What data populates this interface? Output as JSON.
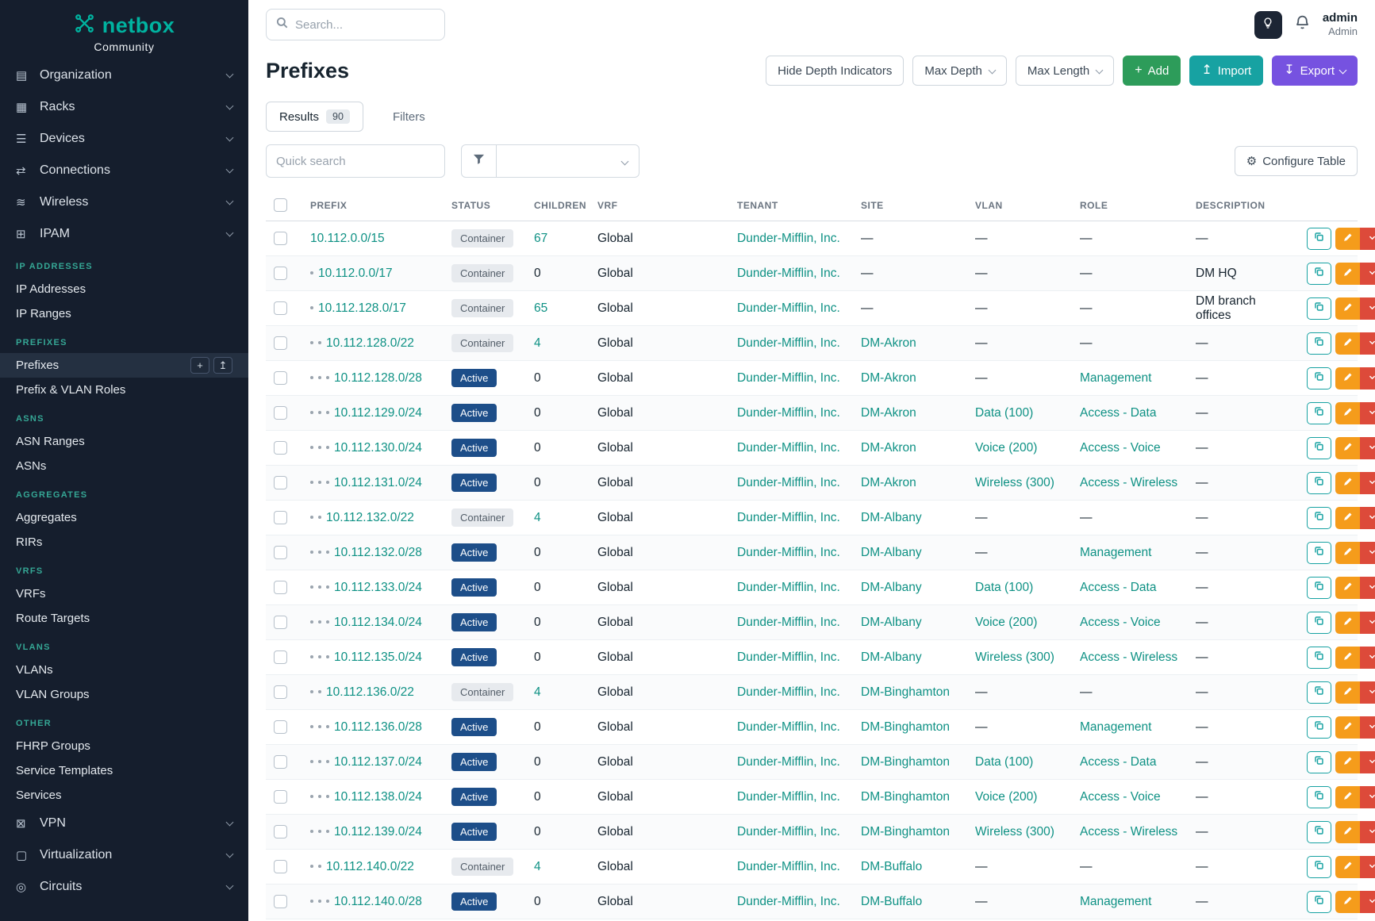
{
  "sidebar": {
    "logo": {
      "text": "netbox",
      "subtitle": "Community"
    },
    "items": [
      {
        "type": "nav",
        "label": "Organization",
        "icon": "building-icon"
      },
      {
        "type": "nav",
        "label": "Racks",
        "icon": "rack-icon"
      },
      {
        "type": "nav",
        "label": "Devices",
        "icon": "devices-icon"
      },
      {
        "type": "nav",
        "label": "Connections",
        "icon": "plug-icon"
      },
      {
        "type": "nav",
        "label": "Wireless",
        "icon": "wifi-icon"
      },
      {
        "type": "nav",
        "label": "IPAM",
        "icon": "ipam-icon"
      },
      {
        "type": "section",
        "label": "IP ADDRESSES"
      },
      {
        "type": "link",
        "label": "IP Addresses"
      },
      {
        "type": "link",
        "label": "IP Ranges"
      },
      {
        "type": "section",
        "label": "PREFIXES"
      },
      {
        "type": "link",
        "label": "Prefixes",
        "active": true
      },
      {
        "type": "link",
        "label": "Prefix & VLAN Roles"
      },
      {
        "type": "section",
        "label": "ASNS"
      },
      {
        "type": "link",
        "label": "ASN Ranges"
      },
      {
        "type": "link",
        "label": "ASNs"
      },
      {
        "type": "section",
        "label": "AGGREGATES"
      },
      {
        "type": "link",
        "label": "Aggregates"
      },
      {
        "type": "link",
        "label": "RIRs"
      },
      {
        "type": "section",
        "label": "VRFS"
      },
      {
        "type": "link",
        "label": "VRFs"
      },
      {
        "type": "link",
        "label": "Route Targets"
      },
      {
        "type": "section",
        "label": "VLANS"
      },
      {
        "type": "link",
        "label": "VLANs"
      },
      {
        "type": "link",
        "label": "VLAN Groups"
      },
      {
        "type": "section",
        "label": "OTHER"
      },
      {
        "type": "link",
        "label": "FHRP Groups"
      },
      {
        "type": "link",
        "label": "Service Templates"
      },
      {
        "type": "link",
        "label": "Services"
      },
      {
        "type": "nav",
        "label": "VPN",
        "icon": "vpn-icon"
      },
      {
        "type": "nav",
        "label": "Virtualization",
        "icon": "vm-icon"
      },
      {
        "type": "nav",
        "label": "Circuits",
        "icon": "circuit-icon"
      }
    ]
  },
  "topbar": {
    "search_placeholder": "Search...",
    "user_name": "admin",
    "user_role": "Admin"
  },
  "page": {
    "title": "Prefixes",
    "buttons": {
      "hide_depth": "Hide Depth Indicators",
      "max_depth": "Max Depth",
      "max_length": "Max Length",
      "add": "Add",
      "import": "Import",
      "export": "Export"
    }
  },
  "tabs": {
    "results_label": "Results",
    "results_count": "90",
    "filters_label": "Filters"
  },
  "toolbar": {
    "quick_search_placeholder": "Quick search",
    "configure_table": "Configure Table"
  },
  "table": {
    "columns": [
      "PREFIX",
      "STATUS",
      "CHILDREN",
      "VRF",
      "TENANT",
      "SITE",
      "VLAN",
      "ROLE",
      "DESCRIPTION"
    ],
    "rows": [
      {
        "depth": 0,
        "prefix": "10.112.0.0/15",
        "status": "Container",
        "children": "67",
        "vrf": "Global",
        "tenant": "Dunder-Mifflin, Inc.",
        "site": "—",
        "vlan": "—",
        "role": "—",
        "description": "—"
      },
      {
        "depth": 1,
        "prefix": "10.112.0.0/17",
        "status": "Container",
        "children": "0",
        "vrf": "Global",
        "tenant": "Dunder-Mifflin, Inc.",
        "site": "—",
        "vlan": "—",
        "role": "—",
        "description": "DM HQ"
      },
      {
        "depth": 1,
        "prefix": "10.112.128.0/17",
        "status": "Container",
        "children": "65",
        "vrf": "Global",
        "tenant": "Dunder-Mifflin, Inc.",
        "site": "—",
        "vlan": "—",
        "role": "—",
        "description": "DM branch offices"
      },
      {
        "depth": 2,
        "prefix": "10.112.128.0/22",
        "status": "Container",
        "children": "4",
        "vrf": "Global",
        "tenant": "Dunder-Mifflin, Inc.",
        "site": "DM-Akron",
        "vlan": "—",
        "role": "—",
        "description": "—"
      },
      {
        "depth": 3,
        "prefix": "10.112.128.0/28",
        "status": "Active",
        "children": "0",
        "vrf": "Global",
        "tenant": "Dunder-Mifflin, Inc.",
        "site": "DM-Akron",
        "vlan": "—",
        "role": "Management",
        "description": "—"
      },
      {
        "depth": 3,
        "prefix": "10.112.129.0/24",
        "status": "Active",
        "children": "0",
        "vrf": "Global",
        "tenant": "Dunder-Mifflin, Inc.",
        "site": "DM-Akron",
        "vlan": "Data (100)",
        "role": "Access - Data",
        "description": "—"
      },
      {
        "depth": 3,
        "prefix": "10.112.130.0/24",
        "status": "Active",
        "children": "0",
        "vrf": "Global",
        "tenant": "Dunder-Mifflin, Inc.",
        "site": "DM-Akron",
        "vlan": "Voice (200)",
        "role": "Access - Voice",
        "description": "—"
      },
      {
        "depth": 3,
        "prefix": "10.112.131.0/24",
        "status": "Active",
        "children": "0",
        "vrf": "Global",
        "tenant": "Dunder-Mifflin, Inc.",
        "site": "DM-Akron",
        "vlan": "Wireless (300)",
        "role": "Access - Wireless",
        "description": "—"
      },
      {
        "depth": 2,
        "prefix": "10.112.132.0/22",
        "status": "Container",
        "children": "4",
        "vrf": "Global",
        "tenant": "Dunder-Mifflin, Inc.",
        "site": "DM-Albany",
        "vlan": "—",
        "role": "—",
        "description": "—"
      },
      {
        "depth": 3,
        "prefix": "10.112.132.0/28",
        "status": "Active",
        "children": "0",
        "vrf": "Global",
        "tenant": "Dunder-Mifflin, Inc.",
        "site": "DM-Albany",
        "vlan": "—",
        "role": "Management",
        "description": "—"
      },
      {
        "depth": 3,
        "prefix": "10.112.133.0/24",
        "status": "Active",
        "children": "0",
        "vrf": "Global",
        "tenant": "Dunder-Mifflin, Inc.",
        "site": "DM-Albany",
        "vlan": "Data (100)",
        "role": "Access - Data",
        "description": "—"
      },
      {
        "depth": 3,
        "prefix": "10.112.134.0/24",
        "status": "Active",
        "children": "0",
        "vrf": "Global",
        "tenant": "Dunder-Mifflin, Inc.",
        "site": "DM-Albany",
        "vlan": "Voice (200)",
        "role": "Access - Voice",
        "description": "—"
      },
      {
        "depth": 3,
        "prefix": "10.112.135.0/24",
        "status": "Active",
        "children": "0",
        "vrf": "Global",
        "tenant": "Dunder-Mifflin, Inc.",
        "site": "DM-Albany",
        "vlan": "Wireless (300)",
        "role": "Access - Wireless",
        "description": "—"
      },
      {
        "depth": 2,
        "prefix": "10.112.136.0/22",
        "status": "Container",
        "children": "4",
        "vrf": "Global",
        "tenant": "Dunder-Mifflin, Inc.",
        "site": "DM-Binghamton",
        "vlan": "—",
        "role": "—",
        "description": "—"
      },
      {
        "depth": 3,
        "prefix": "10.112.136.0/28",
        "status": "Active",
        "children": "0",
        "vrf": "Global",
        "tenant": "Dunder-Mifflin, Inc.",
        "site": "DM-Binghamton",
        "vlan": "—",
        "role": "Management",
        "description": "—"
      },
      {
        "depth": 3,
        "prefix": "10.112.137.0/24",
        "status": "Active",
        "children": "0",
        "vrf": "Global",
        "tenant": "Dunder-Mifflin, Inc.",
        "site": "DM-Binghamton",
        "vlan": "Data (100)",
        "role": "Access - Data",
        "description": "—"
      },
      {
        "depth": 3,
        "prefix": "10.112.138.0/24",
        "status": "Active",
        "children": "0",
        "vrf": "Global",
        "tenant": "Dunder-Mifflin, Inc.",
        "site": "DM-Binghamton",
        "vlan": "Voice (200)",
        "role": "Access - Voice",
        "description": "—"
      },
      {
        "depth": 3,
        "prefix": "10.112.139.0/24",
        "status": "Active",
        "children": "0",
        "vrf": "Global",
        "tenant": "Dunder-Mifflin, Inc.",
        "site": "DM-Binghamton",
        "vlan": "Wireless (300)",
        "role": "Access - Wireless",
        "description": "—"
      },
      {
        "depth": 2,
        "prefix": "10.112.140.0/22",
        "status": "Container",
        "children": "4",
        "vrf": "Global",
        "tenant": "Dunder-Mifflin, Inc.",
        "site": "DM-Buffalo",
        "vlan": "—",
        "role": "—",
        "description": "—"
      },
      {
        "depth": 3,
        "prefix": "10.112.140.0/28",
        "status": "Active",
        "children": "0",
        "vrf": "Global",
        "tenant": "Dunder-Mifflin, Inc.",
        "site": "DM-Buffalo",
        "vlan": "—",
        "role": "Management",
        "description": "—"
      }
    ]
  },
  "colors": {
    "accent_teal": "#0e9184",
    "sidebar_bg": "#151e2d",
    "active_badge_blue": "#1d4e89",
    "container_badge_gray": "#e7eaee",
    "add_green": "#2d9c5a",
    "import_teal": "#17a2a2",
    "export_purple": "#7652e0",
    "edit_orange": "#f59c1b",
    "delete_red": "#dd4a3a"
  }
}
